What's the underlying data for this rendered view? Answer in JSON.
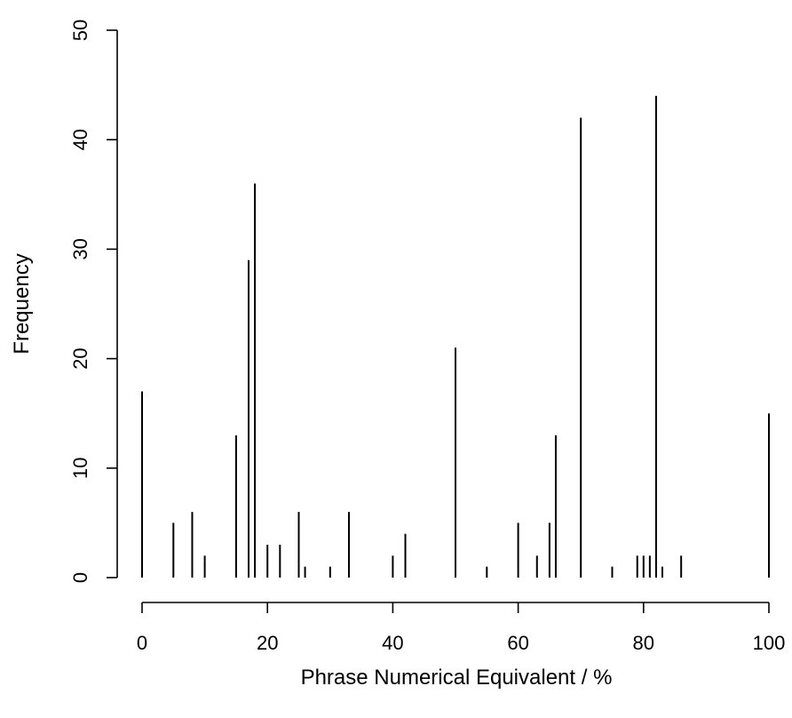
{
  "chart_data": {
    "type": "bar",
    "style": "spike",
    "xlabel": "Phrase Numerical Equivalent / %",
    "ylabel": "Frequency",
    "xlim": [
      0,
      100
    ],
    "ylim": [
      0,
      50
    ],
    "xticks": [
      0,
      20,
      40,
      60,
      80,
      100
    ],
    "yticks": [
      0,
      10,
      20,
      30,
      40,
      50
    ],
    "bar_color": "#000000",
    "points": [
      {
        "x": 0,
        "y": 17
      },
      {
        "x": 5,
        "y": 5
      },
      {
        "x": 8,
        "y": 6
      },
      {
        "x": 10,
        "y": 2
      },
      {
        "x": 15,
        "y": 13
      },
      {
        "x": 17,
        "y": 29
      },
      {
        "x": 18,
        "y": 36
      },
      {
        "x": 20,
        "y": 3
      },
      {
        "x": 22,
        "y": 3
      },
      {
        "x": 25,
        "y": 6
      },
      {
        "x": 26,
        "y": 1
      },
      {
        "x": 30,
        "y": 1
      },
      {
        "x": 33,
        "y": 6
      },
      {
        "x": 40,
        "y": 2
      },
      {
        "x": 42,
        "y": 4
      },
      {
        "x": 50,
        "y": 21
      },
      {
        "x": 55,
        "y": 1
      },
      {
        "x": 60,
        "y": 5
      },
      {
        "x": 63,
        "y": 2
      },
      {
        "x": 65,
        "y": 5
      },
      {
        "x": 66,
        "y": 13
      },
      {
        "x": 70,
        "y": 42
      },
      {
        "x": 75,
        "y": 1
      },
      {
        "x": 79,
        "y": 2
      },
      {
        "x": 80,
        "y": 2
      },
      {
        "x": 81,
        "y": 2
      },
      {
        "x": 82,
        "y": 44
      },
      {
        "x": 83,
        "y": 1
      },
      {
        "x": 86,
        "y": 2
      },
      {
        "x": 100,
        "y": 15
      }
    ],
    "grid": false,
    "legend": "none"
  }
}
